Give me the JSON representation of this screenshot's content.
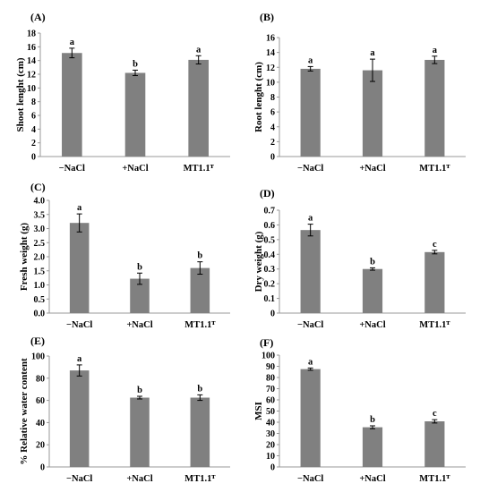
{
  "chart_data": [
    {
      "type": "bar",
      "panel": "(A)",
      "ylabel": "Shoot lenght (cm)",
      "ylim": [
        0,
        18
      ],
      "ytick_step": 2,
      "yticks": [
        "0",
        "2",
        "4",
        "6",
        "8",
        "10",
        "12",
        "14",
        "16",
        "18"
      ],
      "categories": [
        "−NaCl",
        "+NaCl",
        "MT1.1ᵀ"
      ],
      "values": [
        15.1,
        12.2,
        14.1
      ],
      "errors": [
        0.7,
        0.4,
        0.6
      ],
      "letters": [
        "a",
        "b",
        "a"
      ]
    },
    {
      "type": "bar",
      "panel": "(B)",
      "ylabel": "Root lenght (cm)",
      "ylim": [
        0,
        16
      ],
      "ytick_step": 2,
      "yticks": [
        "0",
        "2",
        "4",
        "6",
        "8",
        "10",
        "12",
        "14",
        "16"
      ],
      "categories": [
        "−NaCl",
        "+NaCl",
        "MT1.1ᵀ"
      ],
      "values": [
        11.8,
        11.6,
        13.0
      ],
      "errors": [
        0.3,
        1.5,
        0.5
      ],
      "letters": [
        "a",
        "a",
        "a"
      ]
    },
    {
      "type": "bar",
      "panel": "(C)",
      "ylabel": "Fresh weight (g)",
      "ylim": [
        0,
        4
      ],
      "ytick_step": 0.5,
      "yticks": [
        "0.0",
        "0.5",
        "1.0",
        "1.5",
        "2.0",
        "2.5",
        "3.0",
        "3.5",
        "4.0"
      ],
      "categories": [
        "−NaCl",
        "+NaCl",
        "MT1.1ᵀ"
      ],
      "values": [
        3.2,
        1.22,
        1.6
      ],
      "errors": [
        0.32,
        0.2,
        0.22
      ],
      "letters": [
        "a",
        "b",
        "b"
      ]
    },
    {
      "type": "bar",
      "panel": "(D)",
      "ylabel": "Dry weight (g)",
      "ylim": [
        0,
        0.7
      ],
      "ytick_step": 0.1,
      "yticks": [
        "0",
        "0.1",
        "0.2",
        "0.3",
        "0.4",
        "0.5",
        "0.6",
        "0.7"
      ],
      "categories": [
        "−NaCl",
        "+NaCl",
        "MT1.1ᵀ"
      ],
      "values": [
        0.565,
        0.3,
        0.415
      ],
      "errors": [
        0.04,
        0.008,
        0.012
      ],
      "letters": [
        "a",
        "b",
        "c"
      ]
    },
    {
      "type": "bar",
      "panel": "(E)",
      "ylabel": "% Relative water content",
      "ylim": [
        0,
        100
      ],
      "ytick_step": 20,
      "yticks": [
        "0",
        "20",
        "40",
        "60",
        "80",
        "100"
      ],
      "categories": [
        "−NaCl",
        "+NaCl",
        "MT1.1ᵀ"
      ],
      "values": [
        87,
        62.5,
        62.5
      ],
      "errors": [
        5,
        1.2,
        2.5
      ],
      "letters": [
        "a",
        "b",
        "b"
      ]
    },
    {
      "type": "bar",
      "panel": "(F)",
      "ylabel": "MSI",
      "ylim": [
        0,
        100
      ],
      "ytick_step": 10,
      "yticks": [
        "0",
        "10",
        "20",
        "30",
        "40",
        "50",
        "60",
        "70",
        "80",
        "90",
        "100"
      ],
      "categories": [
        "−NaCl",
        "+NaCl",
        "MT1.1ᵀ"
      ],
      "values": [
        87.5,
        35.5,
        40.8
      ],
      "errors": [
        1,
        1.3,
        1.5
      ],
      "letters": [
        "a",
        "b",
        "c"
      ]
    }
  ],
  "colors": {
    "bar": "#808080",
    "axis": "#999999",
    "text": "#000000"
  }
}
